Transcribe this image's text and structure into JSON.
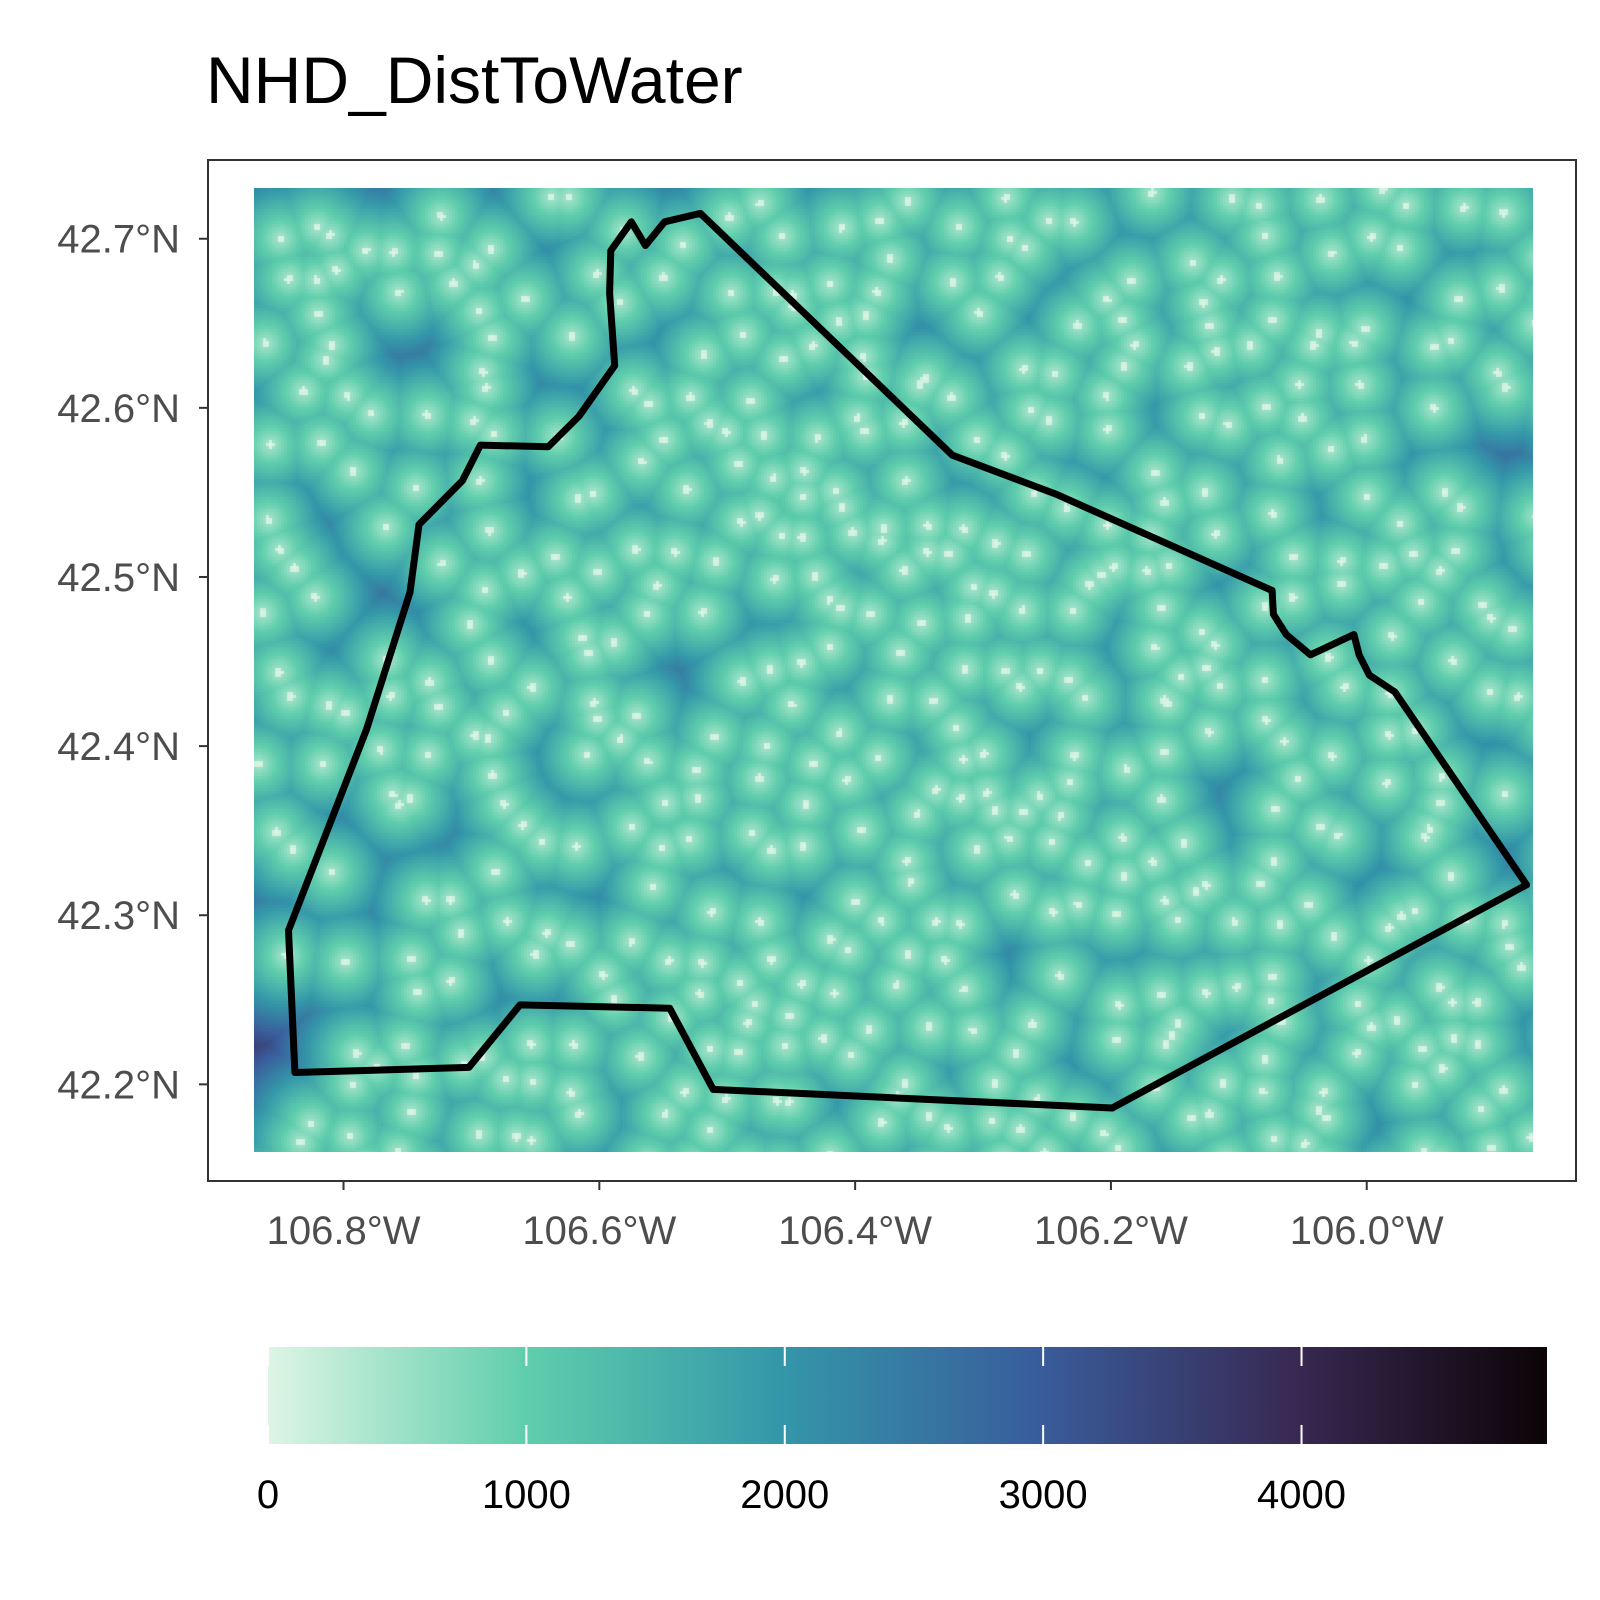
{
  "title": "NHD_DistToWater",
  "chart_data": {
    "type": "heatmap",
    "title": "NHD_DistToWater",
    "variable": "distance to water",
    "xlim": [
      -106.87,
      -105.87
    ],
    "ylim": [
      42.16,
      42.73
    ],
    "x_ticks": [
      {
        "value": -106.8,
        "label": "106.8°W"
      },
      {
        "value": -106.6,
        "label": "106.6°W"
      },
      {
        "value": -106.4,
        "label": "106.4°W"
      },
      {
        "value": -106.2,
        "label": "106.2°W"
      },
      {
        "value": -106.0,
        "label": "106.0°W"
      }
    ],
    "y_ticks": [
      {
        "value": 42.7,
        "label": "42.7°N"
      },
      {
        "value": 42.6,
        "label": "42.6°N"
      },
      {
        "value": 42.5,
        "label": "42.5°N"
      },
      {
        "value": 42.4,
        "label": "42.4°N"
      },
      {
        "value": 42.3,
        "label": "42.3°N"
      },
      {
        "value": 42.2,
        "label": "42.2°N"
      }
    ],
    "colorbar": {
      "min": 0,
      "max": 4950,
      "ticks": [
        0,
        1000,
        2000,
        3000,
        4000
      ],
      "tick_labels": [
        "0",
        "1000",
        "2000",
        "3000",
        "4000"
      ],
      "colors": [
        "#def5e5",
        "#60ceac",
        "#3497a9",
        "#395d9c",
        "#382a54",
        "#0b0405"
      ],
      "position": "bottom"
    },
    "boundary_outline_color": "#000000",
    "boundary": [
      [
        -106.838,
        42.207
      ],
      [
        -106.843,
        42.291
      ],
      [
        -106.782,
        42.41
      ],
      [
        -106.748,
        42.491
      ],
      [
        -106.741,
        42.531
      ],
      [
        -106.707,
        42.557
      ],
      [
        -106.693,
        42.578
      ],
      [
        -106.64,
        42.577
      ],
      [
        -106.616,
        42.595
      ],
      [
        -106.588,
        42.625
      ],
      [
        -106.592,
        42.668
      ],
      [
        -106.591,
        42.693
      ],
      [
        -106.575,
        42.71
      ],
      [
        -106.564,
        42.696
      ],
      [
        -106.549,
        42.71
      ],
      [
        -106.521,
        42.715
      ],
      [
        -106.324,
        42.572
      ],
      [
        -106.243,
        42.549
      ],
      [
        -106.074,
        42.492
      ],
      [
        -106.073,
        42.478
      ],
      [
        -106.063,
        42.466
      ],
      [
        -106.044,
        42.454
      ],
      [
        -106.01,
        42.466
      ],
      [
        -106.006,
        42.454
      ],
      [
        -105.998,
        42.442
      ],
      [
        -105.978,
        42.432
      ],
      [
        -105.875,
        42.318
      ],
      [
        -106.199,
        42.186
      ],
      [
        -106.511,
        42.197
      ],
      [
        -106.545,
        42.245
      ],
      [
        -106.662,
        42.247
      ],
      [
        -106.702,
        42.21
      ],
      [
        -106.838,
        42.207
      ]
    ]
  }
}
